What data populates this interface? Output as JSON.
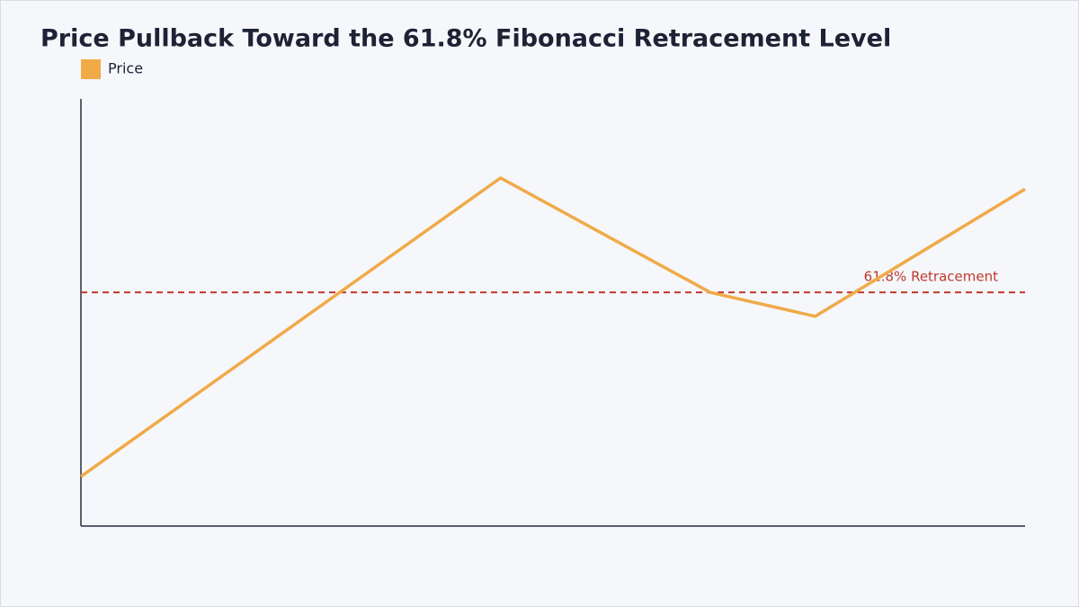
{
  "chart_data": {
    "type": "line",
    "title": "Price Pullback Toward the 61.8% Fibonacci Retracement Level",
    "x": [
      0,
      4,
      6,
      7,
      9
    ],
    "xlim": [
      0,
      9
    ],
    "ylim": [
      0,
      100
    ],
    "series": [
      {
        "name": "Price",
        "color": "#f0aa48",
        "values": [
          11.6,
          81.5,
          54.7,
          49.1,
          78.9
        ]
      }
    ],
    "reference_line": {
      "value": 54.7,
      "label": "61.8% Retracement",
      "color": "#c0392b"
    },
    "legend": "top-left"
  }
}
